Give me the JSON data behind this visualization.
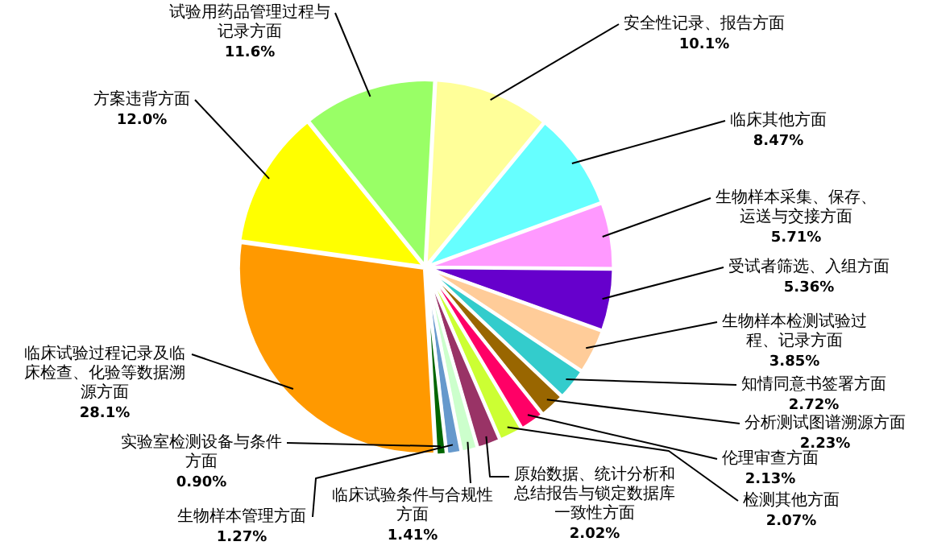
{
  "chart_data": {
    "type": "pie",
    "categories": [
      "安全性记录、报告方面",
      "临床其他方面",
      "生物样本采集、保存、运送与交接方面",
      "受试者筛选、入组方面",
      "生物样本检测试验过程、记录方面",
      "知情同意书签署方面",
      "分析测试图谱溯源方面",
      "伦理审查方面",
      "检测其他方面",
      "原始数据、统计分析和总结报告与锁定数据库一致性方面",
      "临床试验条件与合规性方面",
      "生物样本管理方面",
      "实验室检测设备与条件方面",
      "临床试验过程记录及临床检查、化验等数据溯源方面",
      "方案违背方面",
      "试验用药品管理过程与记录方面"
    ],
    "values": [
      10.1,
      8.47,
      5.71,
      5.36,
      3.85,
      2.72,
      2.23,
      2.13,
      2.07,
      2.02,
      1.41,
      1.27,
      0.9,
      28.1,
      12.0,
      11.6
    ],
    "colors": [
      "#ffff99",
      "#66ffff",
      "#ff99ff",
      "#6600cc",
      "#ffcc99",
      "#33cccc",
      "#996600",
      "#ff0066",
      "#ccff33",
      "#993366",
      "#ccffcc",
      "#6699cc",
      "#006600",
      "#ff9900",
      "#ffff00",
      "#99ff66"
    ],
    "value_labels": [
      "10.1%",
      "8.47%",
      "5.71%",
      "5.36%",
      "3.85%",
      "2.72%",
      "2.23%",
      "2.13%",
      "2.07%",
      "2.02%",
      "1.41%",
      "1.27%",
      "0.90%",
      "28.1%",
      "12.0%",
      "11.6%"
    ],
    "legend": false
  }
}
